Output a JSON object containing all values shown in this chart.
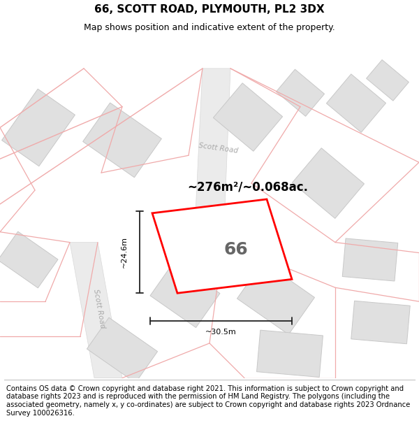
{
  "title": "66, SCOTT ROAD, PLYMOUTH, PL2 3DX",
  "subtitle": "Map shows position and indicative extent of the property.",
  "area_text": "~276m²/~0.068ac.",
  "label_66": "66",
  "dim_width": "~30.5m",
  "dim_height": "~24.6m",
  "footer": "Contains OS data © Crown copyright and database right 2021. This information is subject to Crown copyright and database rights 2023 and is reproduced with the permission of HM Land Registry. The polygons (including the associated geometry, namely x, y co-ordinates) are subject to Crown copyright and database rights 2023 Ordnance Survey 100026316.",
  "bg_color": "#ffffff",
  "road_band_color": "#e8e8e8",
  "road_line_color": "#f0aaaa",
  "highlight_color": "#ff0000",
  "building_fill": "#e0e0e0",
  "building_edge": "#c8c8c8",
  "title_fontsize": 11,
  "subtitle_fontsize": 9,
  "footer_fontsize": 7.2,
  "road_label_color": "#aaaaaa",
  "dim_color": "#333333"
}
